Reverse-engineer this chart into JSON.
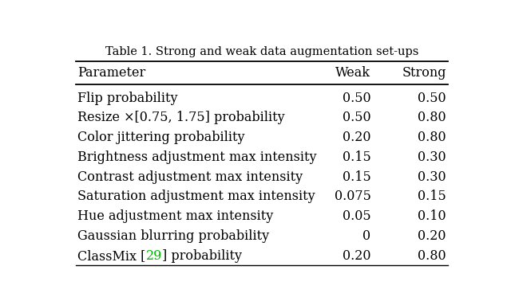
{
  "title": "Table 1. Strong and weak data augmentation set-ups",
  "headers": [
    "Parameter",
    "Weak",
    "Strong"
  ],
  "rows": [
    [
      "Flip probability",
      "0.50",
      "0.50"
    ],
    [
      "Resize ×[0.75, 1.75] probability",
      "0.50",
      "0.80"
    ],
    [
      "Color jittering probability",
      "0.20",
      "0.80"
    ],
    [
      "Brightness adjustment max intensity",
      "0.15",
      "0.30"
    ],
    [
      "Contrast adjustment max intensity",
      "0.15",
      "0.30"
    ],
    [
      "Saturation adjustment max intensity",
      "0.075",
      "0.15"
    ],
    [
      "Hue adjustment max intensity",
      "0.05",
      "0.10"
    ],
    [
      "Gaussian blurring probability",
      "0",
      "0.20"
    ],
    [
      "ClassMix [29] probability",
      "0.20",
      "0.80"
    ]
  ],
  "classmix_prefix": "ClassMix [",
  "classmix_ref": "29",
  "classmix_suffix": "] probability",
  "classmix_ref_color": "#00bb00",
  "background_color": "#ffffff",
  "text_color": "#000000",
  "title_fontsize": 10.5,
  "header_fontsize": 11.5,
  "row_fontsize": 11.5,
  "fig_width": 6.4,
  "fig_height": 3.83
}
